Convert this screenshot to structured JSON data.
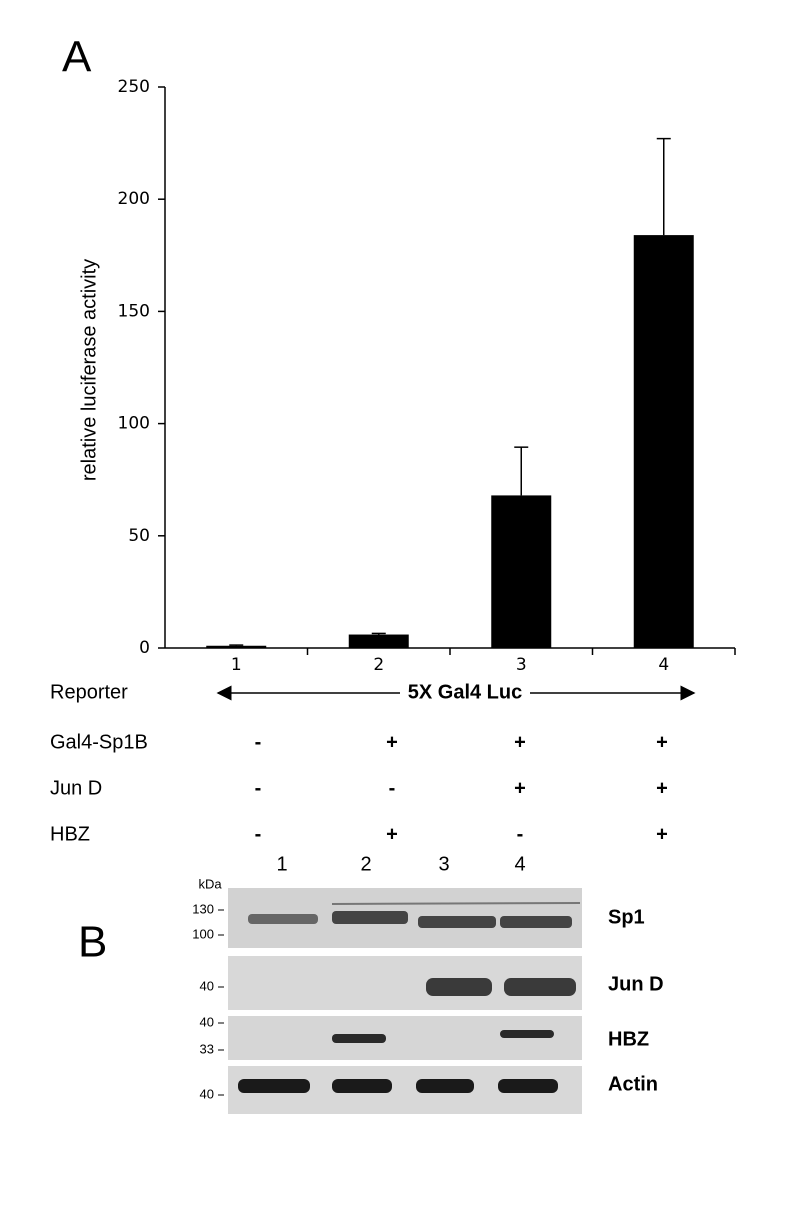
{
  "chart_data": {
    "type": "bar",
    "ylabel": "relative luciferase activity",
    "categories": [
      "1",
      "2",
      "3",
      "4"
    ],
    "values": [
      1,
      6,
      68,
      184
    ],
    "errors": [
      0.3,
      0.5,
      21.5,
      43
    ],
    "color": "#000000",
    "ylim": [
      0,
      250
    ],
    "yticks": [
      0,
      50,
      100,
      150,
      200,
      250
    ]
  },
  "panels": [
    "A",
    "B"
  ],
  "conditions": {
    "reporter": {
      "label": "Reporter",
      "construct": "5X Gal4 Luc"
    },
    "rows": [
      {
        "label": "Gal4-Sp1B",
        "signs": [
          "-",
          "+",
          "+",
          "+"
        ]
      },
      {
        "label": "Jun D",
        "signs": [
          "-",
          "-",
          "+",
          "+"
        ]
      },
      {
        "label": "HBZ",
        "signs": [
          "-",
          "+",
          "-",
          "+"
        ]
      }
    ]
  },
  "blot": {
    "lanes": [
      "1",
      "2",
      "3",
      "4"
    ],
    "unit": "kDa",
    "strips": [
      {
        "label": "Sp1",
        "markers": [
          "130",
          "100"
        ]
      },
      {
        "label": "Jun D",
        "markers": [
          "40"
        ]
      },
      {
        "label": "HBZ",
        "markers": [
          "40",
          "33"
        ]
      },
      {
        "label": "Actin",
        "markers": [
          "40"
        ]
      }
    ]
  }
}
